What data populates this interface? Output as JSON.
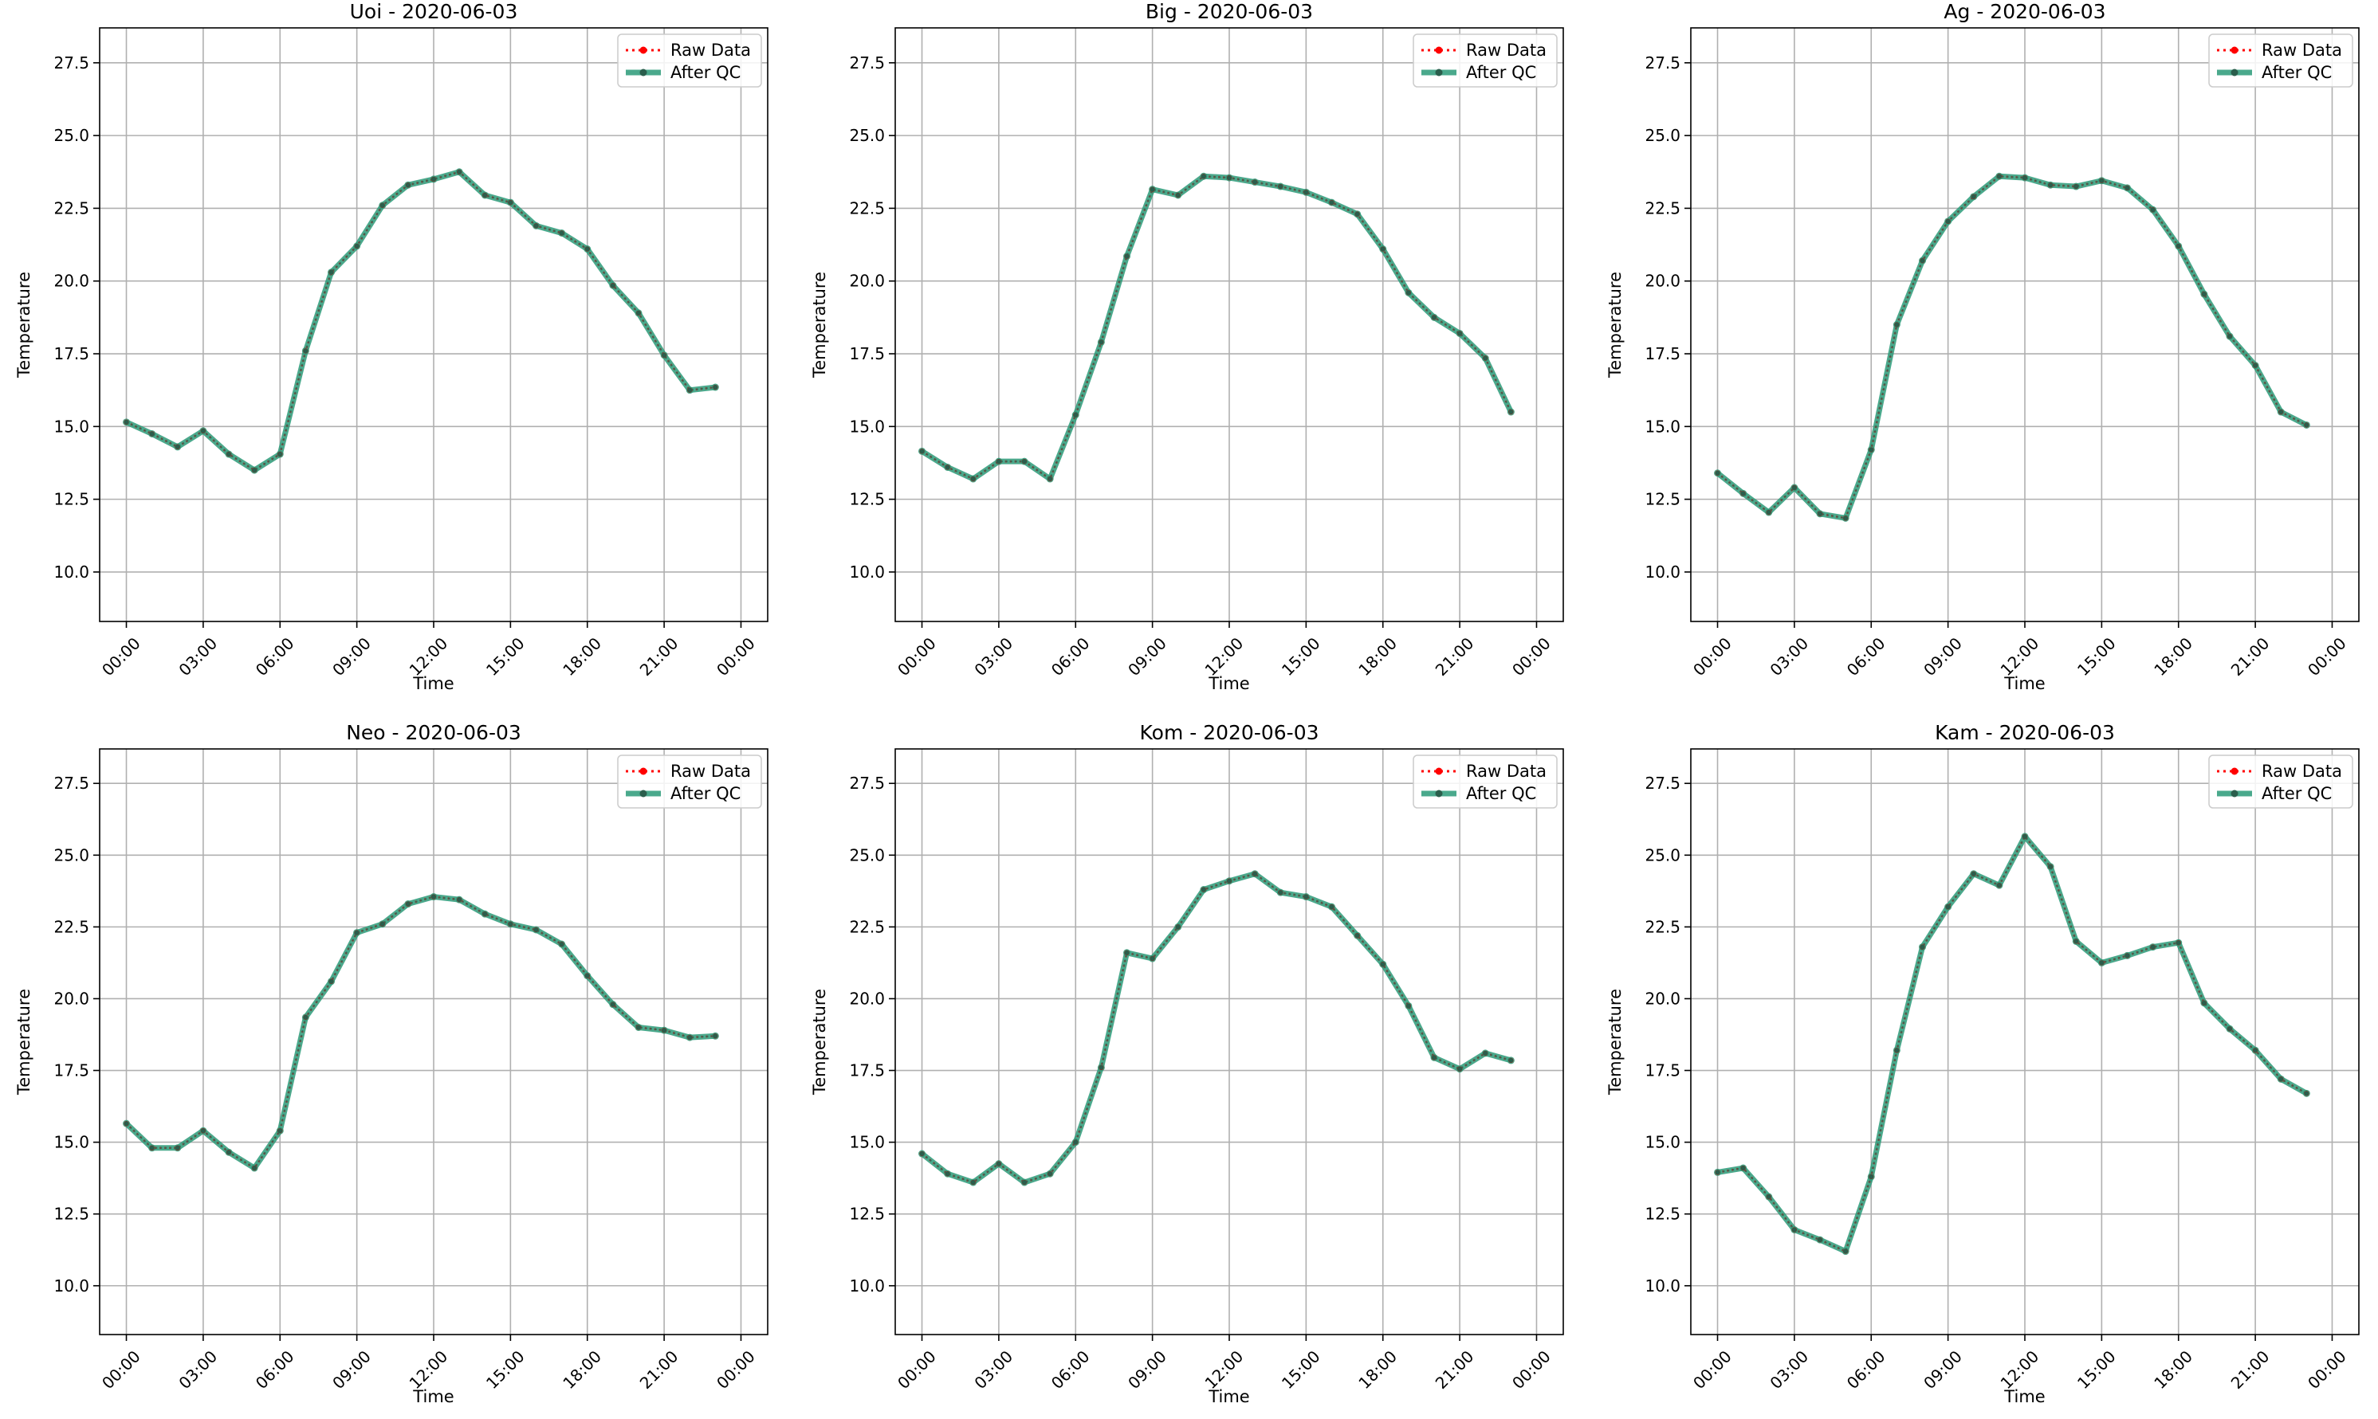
{
  "chart_data": [
    {
      "type": "line",
      "title": "Uoi - 2020-06-03",
      "xlabel": "Time",
      "ylabel": "Temperature",
      "ylim": [
        8.3,
        28.7
      ],
      "yticks": [
        "10.0",
        "12.5",
        "15.0",
        "17.5",
        "20.0",
        "22.5",
        "25.0",
        "27.5"
      ],
      "xticks": [
        "00:00",
        "03:00",
        "06:00",
        "09:00",
        "12:00",
        "15:00",
        "18:00",
        "21:00",
        "00:00"
      ],
      "x": [
        "00:00",
        "01:00",
        "02:00",
        "03:00",
        "04:00",
        "05:00",
        "06:00",
        "07:00",
        "08:00",
        "09:00",
        "10:00",
        "11:00",
        "12:00",
        "13:00",
        "14:00",
        "15:00",
        "16:00",
        "17:00",
        "18:00",
        "19:00",
        "20:00",
        "21:00",
        "22:00",
        "23:00"
      ],
      "grid": true,
      "legend": "top-right",
      "series": [
        {
          "name": "Raw Data",
          "color": "#ff0000",
          "values": [
            15.15,
            14.75,
            14.3,
            14.85,
            14.05,
            13.5,
            14.05,
            17.6,
            20.3,
            21.2,
            22.6,
            23.3,
            23.5,
            23.75,
            22.95,
            22.7,
            21.9,
            21.65,
            21.1,
            19.85,
            18.9,
            17.45,
            16.25,
            16.35
          ]
        },
        {
          "name": "After QC",
          "color": "#2a9a78",
          "values": [
            15.15,
            14.75,
            14.3,
            14.85,
            14.05,
            13.5,
            14.05,
            17.6,
            20.3,
            21.2,
            22.6,
            23.3,
            23.5,
            23.75,
            22.95,
            22.7,
            21.9,
            21.65,
            21.1,
            19.85,
            18.9,
            17.45,
            16.25,
            16.35
          ]
        }
      ]
    },
    {
      "type": "line",
      "title": "Big - 2020-06-03",
      "xlabel": "Time",
      "ylabel": "Temperature",
      "ylim": [
        8.3,
        28.7
      ],
      "yticks": [
        "10.0",
        "12.5",
        "15.0",
        "17.5",
        "20.0",
        "22.5",
        "25.0",
        "27.5"
      ],
      "xticks": [
        "00:00",
        "03:00",
        "06:00",
        "09:00",
        "12:00",
        "15:00",
        "18:00",
        "21:00",
        "00:00"
      ],
      "x": [
        "00:00",
        "01:00",
        "02:00",
        "03:00",
        "04:00",
        "05:00",
        "06:00",
        "07:00",
        "08:00",
        "09:00",
        "10:00",
        "11:00",
        "12:00",
        "13:00",
        "14:00",
        "15:00",
        "16:00",
        "17:00",
        "18:00",
        "19:00",
        "20:00",
        "21:00",
        "22:00",
        "23:00"
      ],
      "grid": true,
      "legend": "top-right",
      "series": [
        {
          "name": "Raw Data",
          "color": "#ff0000",
          "values": [
            14.15,
            13.6,
            13.2,
            13.8,
            13.8,
            13.2,
            15.4,
            17.9,
            20.85,
            23.15,
            22.95,
            23.6,
            23.55,
            23.4,
            23.25,
            23.05,
            22.7,
            22.3,
            21.1,
            19.6,
            18.75,
            18.2,
            17.35,
            15.5
          ]
        },
        {
          "name": "After QC",
          "color": "#2a9a78",
          "values": [
            14.15,
            13.6,
            13.2,
            13.8,
            13.8,
            13.2,
            15.4,
            17.9,
            20.85,
            23.15,
            22.95,
            23.6,
            23.55,
            23.4,
            23.25,
            23.05,
            22.7,
            22.3,
            21.1,
            19.6,
            18.75,
            18.2,
            17.35,
            15.5
          ]
        }
      ]
    },
    {
      "type": "line",
      "title": "Ag - 2020-06-03",
      "xlabel": "Time",
      "ylabel": "Temperature",
      "ylim": [
        8.3,
        28.7
      ],
      "yticks": [
        "10.0",
        "12.5",
        "15.0",
        "17.5",
        "20.0",
        "22.5",
        "25.0",
        "27.5"
      ],
      "xticks": [
        "00:00",
        "03:00",
        "06:00",
        "09:00",
        "12:00",
        "15:00",
        "18:00",
        "21:00",
        "00:00"
      ],
      "x": [
        "00:00",
        "01:00",
        "02:00",
        "03:00",
        "04:00",
        "05:00",
        "06:00",
        "07:00",
        "08:00",
        "09:00",
        "10:00",
        "11:00",
        "12:00",
        "13:00",
        "14:00",
        "15:00",
        "16:00",
        "17:00",
        "18:00",
        "19:00",
        "20:00",
        "21:00",
        "22:00",
        "23:00"
      ],
      "grid": true,
      "legend": "top-right",
      "series": [
        {
          "name": "Raw Data",
          "color": "#ff0000",
          "values": [
            13.4,
            12.7,
            12.05,
            12.9,
            12.0,
            11.85,
            14.2,
            18.5,
            20.7,
            22.05,
            22.9,
            23.6,
            23.55,
            23.3,
            23.25,
            23.45,
            23.2,
            22.45,
            21.2,
            19.55,
            18.1,
            17.1,
            15.5,
            15.05
          ]
        },
        {
          "name": "After QC",
          "color": "#2a9a78",
          "values": [
            13.4,
            12.7,
            12.05,
            12.9,
            12.0,
            11.85,
            14.2,
            18.5,
            20.7,
            22.05,
            22.9,
            23.6,
            23.55,
            23.3,
            23.25,
            23.45,
            23.2,
            22.45,
            21.2,
            19.55,
            18.1,
            17.1,
            15.5,
            15.05
          ]
        }
      ]
    },
    {
      "type": "line",
      "title": "Neo - 2020-06-03",
      "xlabel": "Time",
      "ylabel": "Temperature",
      "ylim": [
        8.3,
        28.7
      ],
      "yticks": [
        "10.0",
        "12.5",
        "15.0",
        "17.5",
        "20.0",
        "22.5",
        "25.0",
        "27.5"
      ],
      "xticks": [
        "00:00",
        "03:00",
        "06:00",
        "09:00",
        "12:00",
        "15:00",
        "18:00",
        "21:00",
        "00:00"
      ],
      "x": [
        "00:00",
        "01:00",
        "02:00",
        "03:00",
        "04:00",
        "05:00",
        "06:00",
        "07:00",
        "08:00",
        "09:00",
        "10:00",
        "11:00",
        "12:00",
        "13:00",
        "14:00",
        "15:00",
        "16:00",
        "17:00",
        "18:00",
        "19:00",
        "20:00",
        "21:00",
        "22:00",
        "23:00"
      ],
      "grid": true,
      "legend": "top-right",
      "series": [
        {
          "name": "Raw Data",
          "color": "#ff0000",
          "values": [
            15.65,
            14.8,
            14.8,
            15.4,
            14.65,
            14.1,
            15.4,
            19.35,
            20.6,
            22.3,
            22.6,
            23.3,
            23.55,
            23.45,
            22.95,
            22.6,
            22.4,
            21.9,
            20.8,
            19.8,
            19.0,
            18.9,
            18.65,
            18.7
          ]
        },
        {
          "name": "After QC",
          "color": "#2a9a78",
          "values": [
            15.65,
            14.8,
            14.8,
            15.4,
            14.65,
            14.1,
            15.4,
            19.35,
            20.6,
            22.3,
            22.6,
            23.3,
            23.55,
            23.45,
            22.95,
            22.6,
            22.4,
            21.9,
            20.8,
            19.8,
            19.0,
            18.9,
            18.65,
            18.7
          ]
        }
      ]
    },
    {
      "type": "line",
      "title": "Kom - 2020-06-03",
      "xlabel": "Time",
      "ylabel": "Temperature",
      "ylim": [
        8.3,
        28.7
      ],
      "yticks": [
        "10.0",
        "12.5",
        "15.0",
        "17.5",
        "20.0",
        "22.5",
        "25.0",
        "27.5"
      ],
      "xticks": [
        "00:00",
        "03:00",
        "06:00",
        "09:00",
        "12:00",
        "15:00",
        "18:00",
        "21:00",
        "00:00"
      ],
      "x": [
        "00:00",
        "01:00",
        "02:00",
        "03:00",
        "04:00",
        "05:00",
        "06:00",
        "07:00",
        "08:00",
        "09:00",
        "10:00",
        "11:00",
        "12:00",
        "13:00",
        "14:00",
        "15:00",
        "16:00",
        "17:00",
        "18:00",
        "19:00",
        "20:00",
        "21:00",
        "22:00",
        "23:00"
      ],
      "grid": true,
      "legend": "top-right",
      "series": [
        {
          "name": "Raw Data",
          "color": "#ff0000",
          "values": [
            14.6,
            13.9,
            13.6,
            14.25,
            13.6,
            13.9,
            15.0,
            17.6,
            21.6,
            21.4,
            22.5,
            23.8,
            24.1,
            24.35,
            23.7,
            23.55,
            23.2,
            22.2,
            21.2,
            19.75,
            17.95,
            17.55,
            18.1,
            17.85
          ]
        },
        {
          "name": "After QC",
          "color": "#2a9a78",
          "values": [
            14.6,
            13.9,
            13.6,
            14.25,
            13.6,
            13.9,
            15.0,
            17.6,
            21.6,
            21.4,
            22.5,
            23.8,
            24.1,
            24.35,
            23.7,
            23.55,
            23.2,
            22.2,
            21.2,
            19.75,
            17.95,
            17.55,
            18.1,
            17.85
          ]
        }
      ]
    },
    {
      "type": "line",
      "title": "Kam - 2020-06-03",
      "xlabel": "Time",
      "ylabel": "Temperature",
      "ylim": [
        8.3,
        28.7
      ],
      "yticks": [
        "10.0",
        "12.5",
        "15.0",
        "17.5",
        "20.0",
        "22.5",
        "25.0",
        "27.5"
      ],
      "xticks": [
        "00:00",
        "03:00",
        "06:00",
        "09:00",
        "12:00",
        "15:00",
        "18:00",
        "21:00",
        "00:00"
      ],
      "x": [
        "00:00",
        "01:00",
        "02:00",
        "03:00",
        "04:00",
        "05:00",
        "06:00",
        "07:00",
        "08:00",
        "09:00",
        "10:00",
        "11:00",
        "12:00",
        "13:00",
        "14:00",
        "15:00",
        "16:00",
        "17:00",
        "18:00",
        "19:00",
        "20:00",
        "21:00",
        "22:00",
        "23:00"
      ],
      "grid": true,
      "legend": "top-right",
      "series": [
        {
          "name": "Raw Data",
          "color": "#ff0000",
          "values": [
            13.95,
            14.1,
            13.1,
            11.95,
            11.6,
            11.2,
            13.8,
            18.2,
            21.8,
            23.2,
            24.35,
            23.95,
            25.65,
            24.6,
            22.0,
            21.25,
            21.5,
            21.8,
            21.95,
            19.85,
            18.95,
            18.2,
            17.2,
            16.7
          ]
        },
        {
          "name": "After QC",
          "color": "#2a9a78",
          "values": [
            13.95,
            14.1,
            13.1,
            11.95,
            11.6,
            11.2,
            13.8,
            18.2,
            21.8,
            23.2,
            24.35,
            23.95,
            25.65,
            24.6,
            22.0,
            21.25,
            21.5,
            21.8,
            21.95,
            19.85,
            18.95,
            18.2,
            17.2,
            16.7
          ]
        }
      ]
    }
  ]
}
